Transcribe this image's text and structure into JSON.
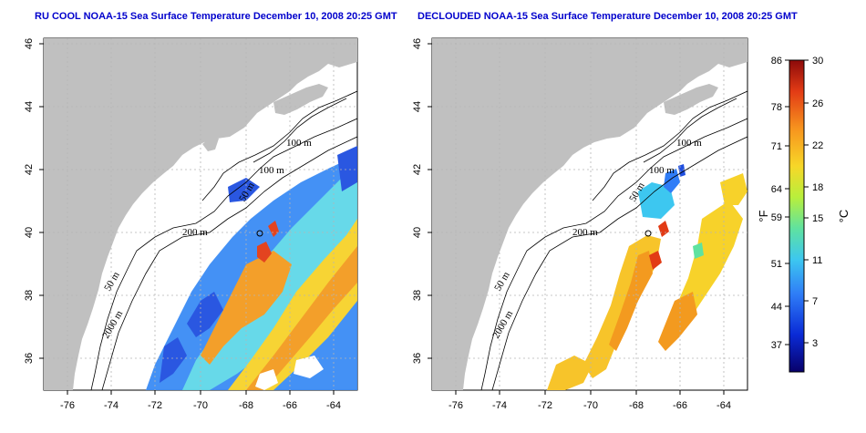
{
  "panels": [
    {
      "id": "left",
      "title": "RU COOL NOAA-15 Sea Surface Temperature December 10, 2008 20:25 GMT"
    },
    {
      "id": "right",
      "title": "DECLOUDED NOAA-15 Sea Surface Temperature December 10, 2008 20:25 GMT"
    }
  ],
  "axes": {
    "lon_ticks": [
      "-76",
      "-74",
      "-72",
      "-70",
      "-68",
      "-66",
      "-64"
    ],
    "lat_ticks": [
      "46",
      "44",
      "42",
      "40",
      "38",
      "36"
    ]
  },
  "contour_labels": {
    "label_100m_a": "100 m",
    "label_100m_b": "100 m",
    "label_50m_a": "50 m",
    "label_200m": "200 m",
    "label_50m_b": "50 m",
    "label_2000m": "2000 m"
  },
  "colorbar": {
    "fahrenheit": [
      "86",
      "78",
      "71",
      "64",
      "59",
      "51",
      "44",
      "37"
    ],
    "celsius": [
      "30",
      "26",
      "22",
      "18",
      "15",
      "11",
      "7",
      "3"
    ],
    "f_unit": "°F",
    "c_unit": "°C",
    "colors": [
      "#08006a",
      "#0a2bd6",
      "#2f7df7",
      "#3dc7f0",
      "#5fe2a0",
      "#b8ef3c",
      "#f7d728",
      "#f7941e",
      "#e23b15",
      "#8c0a0a"
    ]
  },
  "colors": {
    "land": "#c0c0c0",
    "title": "#0000cc",
    "grid": "#b5b5b5"
  }
}
